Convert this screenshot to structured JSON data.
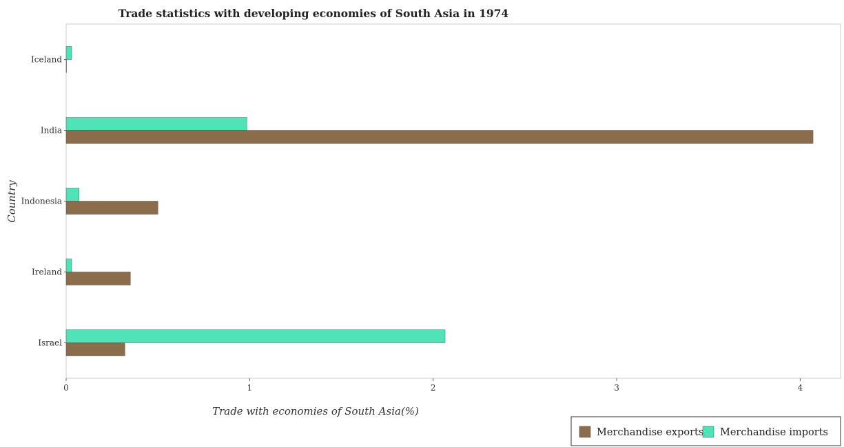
{
  "chart_data": {
    "type": "bar",
    "orientation": "horizontal",
    "title": "Trade statistics with developing economies of South Asia in 1974",
    "xlabel": "Trade with economies of South Asia(%)",
    "ylabel": "Country",
    "categories": [
      "Iceland",
      "India",
      "Indonesia",
      "Ireland",
      "Israel"
    ],
    "xlim": [
      0,
      4.22
    ],
    "xticks": [
      "0",
      "1",
      "2",
      "3",
      "4"
    ],
    "series": [
      {
        "name": "Merchandise exports",
        "color": "#8b6d4b",
        "values": [
          0.001,
          4.07,
          0.5,
          0.35,
          0.32
        ]
      },
      {
        "name": "Merchandise imports",
        "color": "#50e3b8",
        "values": [
          0.03,
          0.985,
          0.07,
          0.03,
          2.065
        ]
      }
    ],
    "legend_position": "bottom-right",
    "grid": false
  }
}
